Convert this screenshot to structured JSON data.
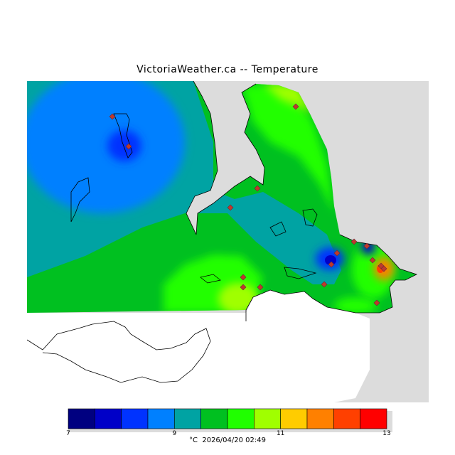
{
  "title": "VictoriaWeather.ca -- Temperature",
  "legend": {
    "colors": [
      "#000080",
      "#0000c8",
      "#0033ff",
      "#0080ff",
      "#00a3a3",
      "#00c020",
      "#20ff00",
      "#a0ff00",
      "#ffcc00",
      "#ff8000",
      "#ff4000",
      "#ff0000"
    ],
    "ticks": [
      "7",
      "9",
      "11",
      "13"
    ],
    "unit": "°C",
    "timestamp": "2026/04/20 02:49"
  },
  "map": {
    "land_color": "#dcdcdc",
    "station_icon": "diamond-marker-icon"
  }
}
